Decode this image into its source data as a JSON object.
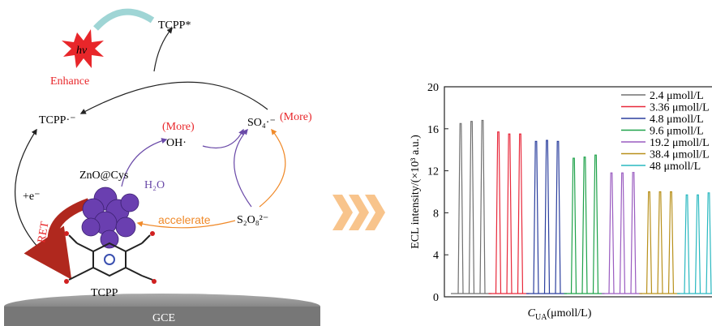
{
  "diagram": {
    "labels": {
      "tcpp_star": "TCPP*",
      "hv": "hν",
      "enhance": "Enhance",
      "tcpp_radical": "TCPP·⁻",
      "so4": "SO₄·⁻",
      "so4_more": "(More)",
      "oh_more": "(More)",
      "oh": "OH·",
      "znocys": "ZnO@Cys",
      "h2o": "H₂O",
      "electron": "+e⁻",
      "ret": "RET",
      "accelerate": "accelerate",
      "s2o8": "S₂O₈²⁻",
      "tcpp": "TCPP",
      "gce": "GCE"
    }
  },
  "chart_data": {
    "type": "line",
    "ylabel": "ECL intensity/(×10³ a.u.)",
    "xlabel": {
      "symbol": "C",
      "subscript": "UA",
      "unit": "(μmoll/L)"
    },
    "ylim": [
      0,
      20
    ],
    "yticks": [
      0,
      4,
      8,
      12,
      16,
      20
    ],
    "series": [
      {
        "name": "2.4 μmoll/L",
        "color": "#707070",
        "values": [
          16.5,
          16.7,
          16.8
        ]
      },
      {
        "name": "3.36 μmoll/L",
        "color": "#e8283a",
        "values": [
          15.7,
          15.5,
          15.5
        ]
      },
      {
        "name": "4.8 μmoll/L",
        "color": "#2b3f9e",
        "values": [
          14.8,
          14.9,
          14.8
        ]
      },
      {
        "name": "9.6 μmoll/L",
        "color": "#1fa24a",
        "values": [
          13.2,
          13.3,
          13.5
        ]
      },
      {
        "name": "19.2 μmoll/L",
        "color": "#9a5cc0",
        "values": [
          11.8,
          11.8,
          11.9
        ]
      },
      {
        "name": "38.4 μmoll/L",
        "color": "#b8901a",
        "values": [
          10.0,
          10.0,
          10.0
        ]
      },
      {
        "name": "48 μmoll/L",
        "color": "#29b8c0",
        "values": [
          9.7,
          9.7,
          9.9
        ]
      }
    ]
  }
}
